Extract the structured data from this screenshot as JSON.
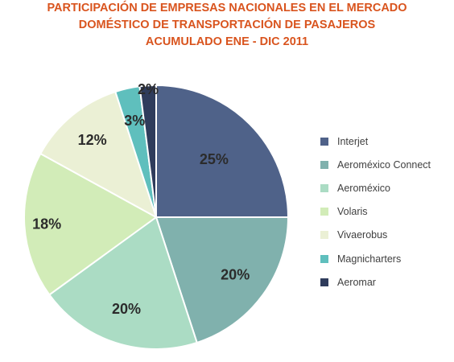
{
  "chart_data": {
    "type": "pie",
    "title": [
      "PARTICIPACIÓN DE EMPRESAS NACIONALES EN EL MERCADO",
      "DOMÉSTICO DE TRANSPORTACIÓN DE PASAJEROS",
      "ACUMULADO ENE - DIC 2011"
    ],
    "categories": [
      "Interjet",
      "Aeroméxico Connect",
      "Aeroméxico",
      "Volaris",
      "Vivaerobus",
      "Magnicharters",
      "Aeromar"
    ],
    "values": [
      25,
      20,
      20,
      18,
      12,
      3,
      2
    ],
    "data_labels": [
      "25%",
      "20%",
      "20%",
      "18%",
      "12%",
      "3%",
      "2%"
    ],
    "colors": [
      "#4f6289",
      "#80b1ad",
      "#abdcc4",
      "#d2ecb8",
      "#ebf0d5",
      "#5fbfbd",
      "#2f3c5c"
    ],
    "legend_position": "right"
  }
}
